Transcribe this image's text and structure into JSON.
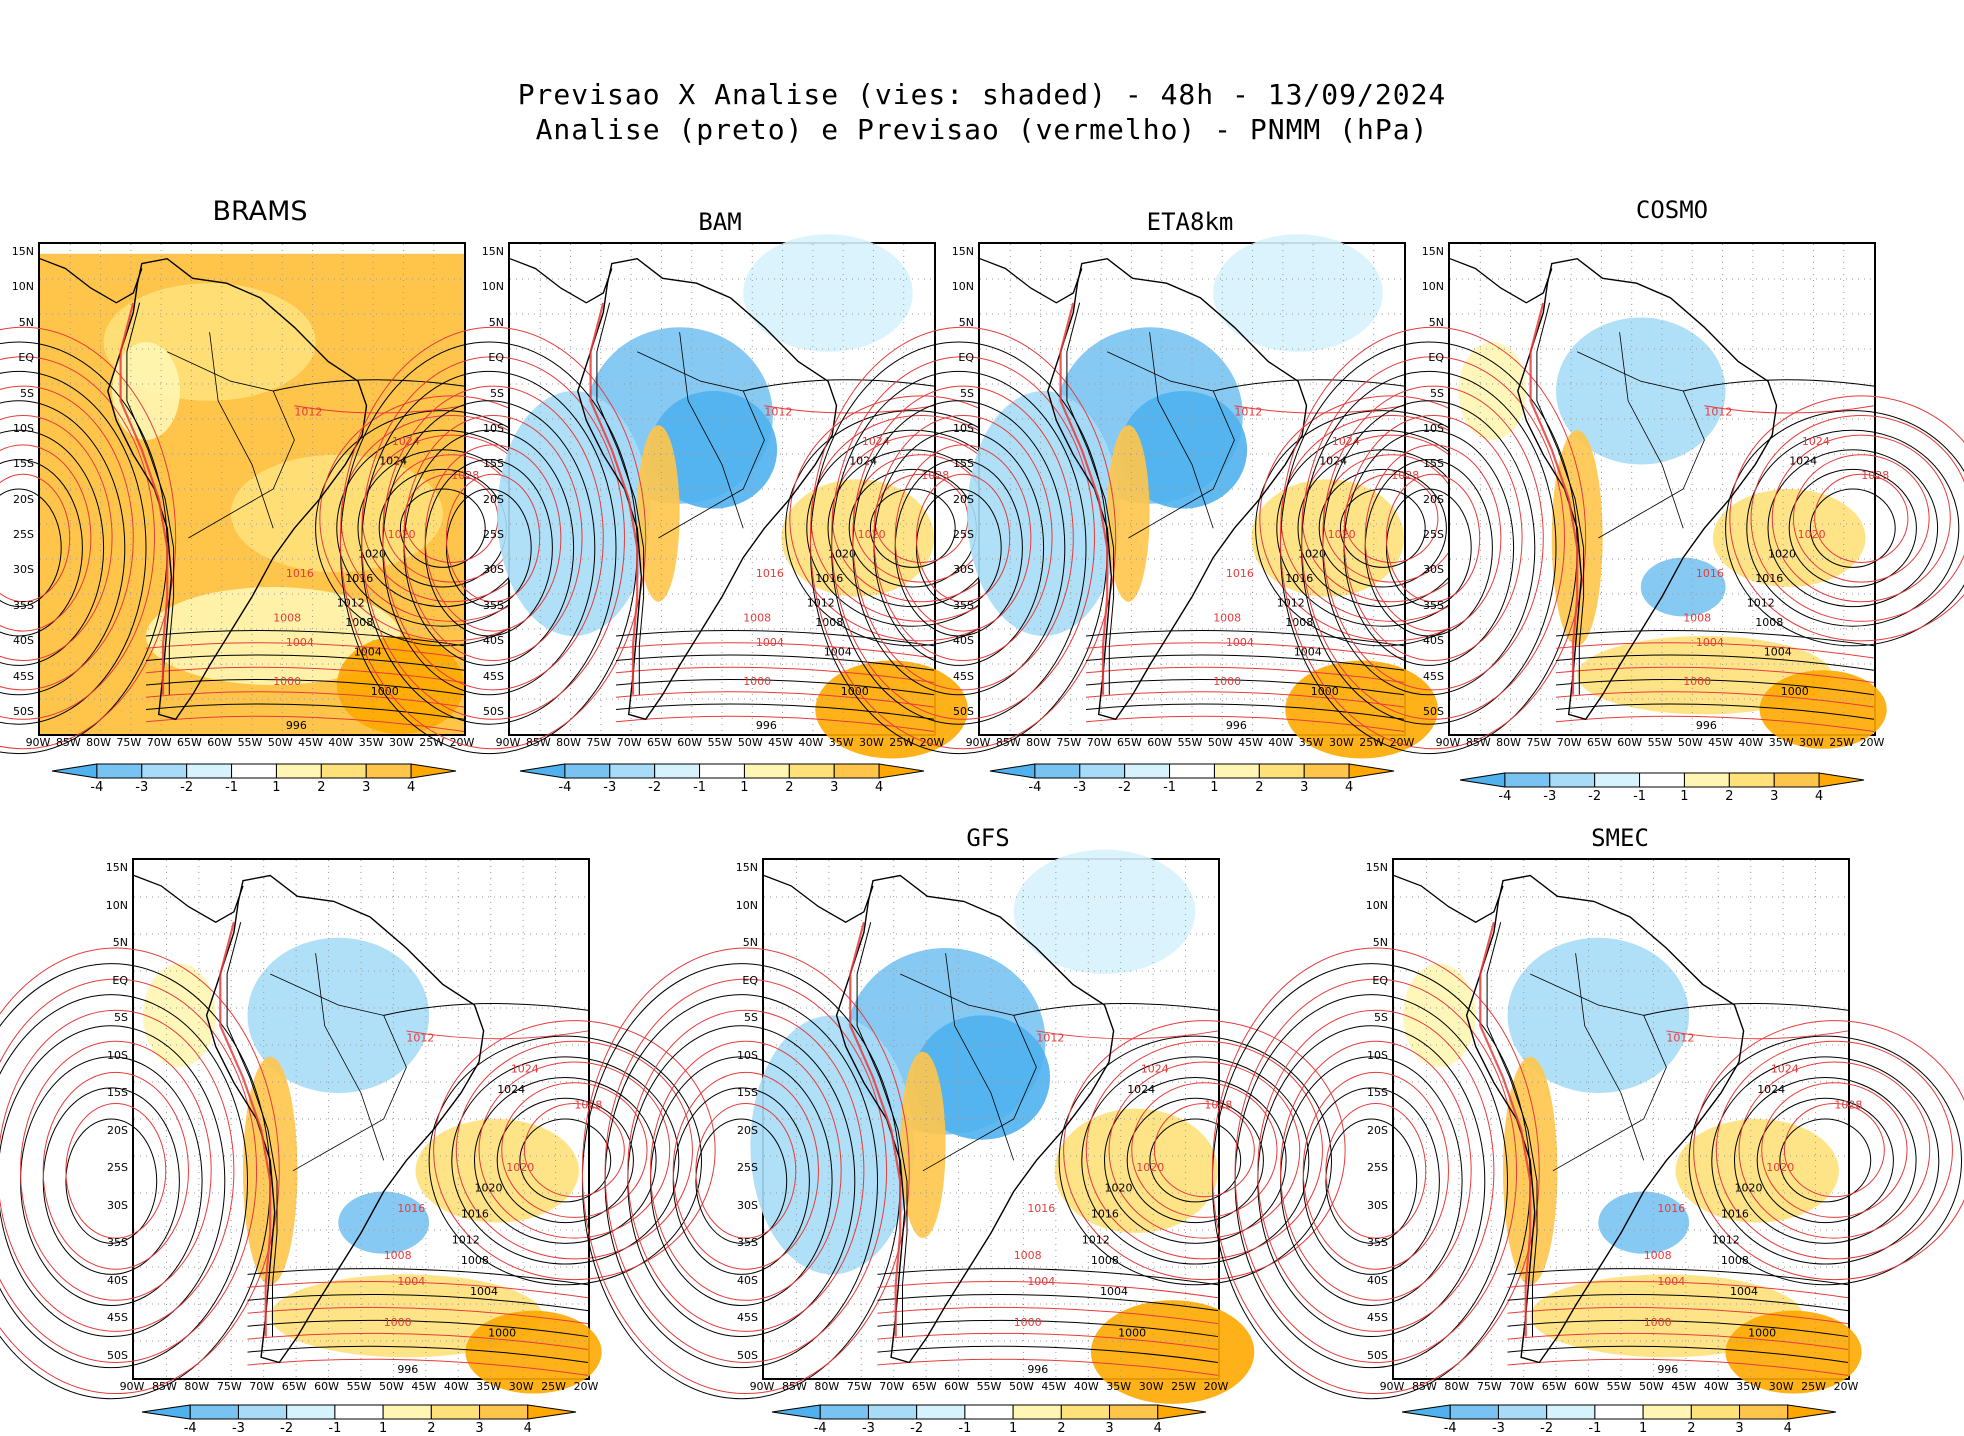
{
  "header": {
    "line1": "Previsao X Analise (vies: shaded) - 48h - 13/09/2024",
    "line2": "Analise (preto) e Previsao (vermelho) - PNMM (hPa)"
  },
  "axes": {
    "lat_labels": [
      "15N",
      "10N",
      "5N",
      "EQ",
      "5S",
      "10S",
      "15S",
      "20S",
      "25S",
      "30S",
      "35S",
      "40S",
      "45S",
      "50S"
    ],
    "lon_labels": [
      "90W",
      "85W",
      "80W",
      "75W",
      "70W",
      "65W",
      "60W",
      "55W",
      "50W",
      "45W",
      "40W",
      "35W",
      "30W",
      "25W",
      "20W"
    ]
  },
  "colorbar": {
    "labels": [
      "-4",
      "-3",
      "-2",
      "-1",
      "1",
      "2",
      "3",
      "4"
    ],
    "colors": [
      "#4fb1ee",
      "#79c3f2",
      "#a7dbf7",
      "#d6f2fd",
      "#ffffff",
      "#fff6b3",
      "#ffe17a",
      "#ffc54a",
      "#ffa800"
    ]
  },
  "contour_labels": {
    "analysis": [
      "1004",
      "1008",
      "1012",
      "1016",
      "1020",
      "1024",
      "996",
      "1000"
    ],
    "forecast": [
      "1004",
      "1008",
      "1012",
      "1016",
      "1020",
      "1024",
      "1028",
      "1000"
    ]
  },
  "colors": {
    "analysis": "#000000",
    "forecast": "#e63b3b",
    "frame": "#000000"
  },
  "panels": [
    {
      "id": "brams",
      "title": "BRAMS",
      "bias": "warm"
    },
    {
      "id": "bam",
      "title": "BAM",
      "bias": "cold"
    },
    {
      "id": "eta8km",
      "title": "ETA8km",
      "bias": "cold"
    },
    {
      "id": "cosmo",
      "title": "COSMO",
      "bias": "mixed"
    },
    {
      "id": "wrf",
      "title": "",
      "bias": "mixed"
    },
    {
      "id": "gfs",
      "title": "GFS",
      "bias": "cold"
    },
    {
      "id": "smec",
      "title": "SMEC",
      "bias": "mixed"
    }
  ]
}
